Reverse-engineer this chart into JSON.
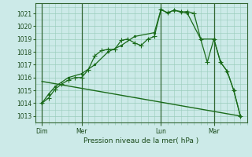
{
  "background_color": "#cceae8",
  "grid_color": "#99ccbb",
  "line_color": "#1a6b1a",
  "marker_color": "#1a6b1a",
  "title": "Pression niveau de la mer( hPa )",
  "ylabel_values": [
    1013,
    1014,
    1015,
    1016,
    1017,
    1018,
    1019,
    1020,
    1021
  ],
  "ylim": [
    1012.5,
    1021.8
  ],
  "x_ticks_labels": [
    "Dim",
    "Mer",
    "Lun",
    "Mar"
  ],
  "x_ticks_pos": [
    0,
    6,
    18,
    26
  ],
  "xlim": [
    -0.5,
    31
  ],
  "vline_pos": [
    0,
    6,
    18,
    26
  ],
  "series1_x": [
    0,
    1,
    2,
    3,
    4,
    5,
    6,
    7,
    8,
    9,
    10,
    11,
    12,
    13,
    14,
    15,
    16,
    17,
    18,
    19,
    20,
    21,
    22,
    23,
    24,
    25,
    26,
    27,
    28,
    29,
    30
  ],
  "series1_y": [
    1014.0,
    1014.4,
    1015.1,
    1015.5,
    1015.8,
    1016.0,
    1016.0,
    1016.6,
    1017.7,
    1018.1,
    1018.2,
    1018.2,
    1018.9,
    1019.0,
    1018.7,
    1018.5,
    1019.0,
    1019.2,
    1021.3,
    1021.05,
    1021.25,
    1021.1,
    1021.15,
    1021.0,
    1019.0,
    1017.2,
    1019.0,
    1017.2,
    1016.5,
    1015.0,
    1013.0
  ],
  "series2_x": [
    0,
    1,
    2,
    4,
    6,
    8,
    10,
    12,
    14,
    17,
    18,
    19,
    20,
    21,
    22,
    24,
    26,
    27,
    28,
    29,
    30
  ],
  "series2_y": [
    1014.0,
    1014.7,
    1015.3,
    1016.0,
    1016.3,
    1017.0,
    1018.0,
    1018.5,
    1019.2,
    1019.5,
    1021.3,
    1021.05,
    1021.25,
    1021.15,
    1021.0,
    1019.0,
    1019.0,
    1017.2,
    1016.5,
    1015.0,
    1013.0
  ],
  "series3_x": [
    0,
    30
  ],
  "series3_y": [
    1015.7,
    1013.0
  ]
}
